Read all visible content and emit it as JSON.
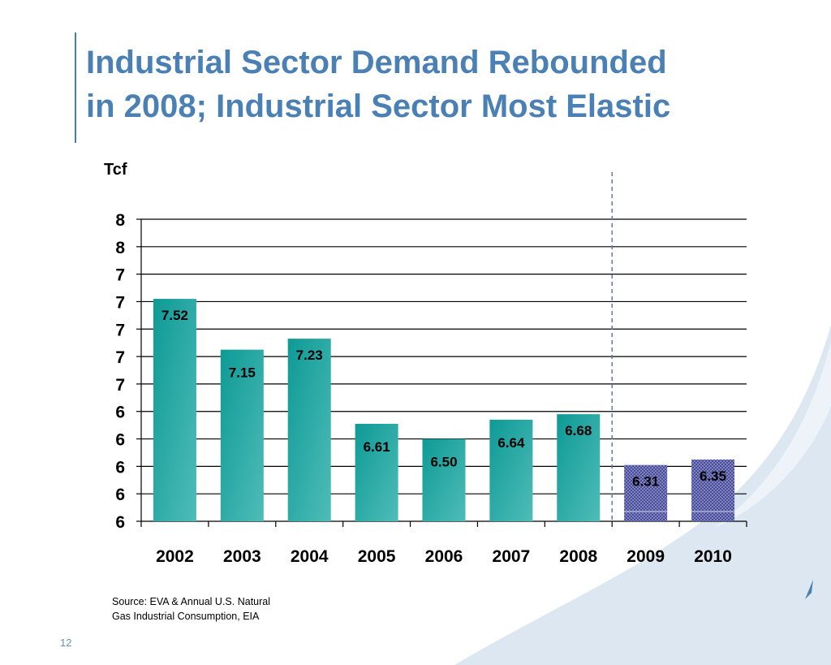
{
  "slide": {
    "title_line1": "Industrial Sector Demand Rebounded",
    "title_line2": "in 2008; Industrial Sector Most Elastic",
    "source_line1": "Source:  EVA & Annual U.S. Natural",
    "source_line2": "Gas Industrial Consumption, EIA",
    "page_number": "12"
  },
  "colors": {
    "title": "#4a80b4",
    "actual_bar": "#1aa09c",
    "forecast_bar": "#3b3f8f",
    "divider": "#6a6fc0"
  },
  "chart_data": {
    "type": "bar",
    "title": "",
    "xlabel": "",
    "ylabel": "Tcf",
    "ylim": [
      5.9,
      8.1
    ],
    "y_tick_labels": [
      "6",
      "6",
      "6",
      "6",
      "6",
      "7",
      "7",
      "7",
      "7",
      "7",
      "8",
      "8"
    ],
    "grid": true,
    "categories": [
      "2002",
      "2003",
      "2004",
      "2005",
      "2006",
      "2007",
      "2008",
      "2009",
      "2010"
    ],
    "series": [
      {
        "values": [
          7.52,
          7.15,
          7.23,
          6.61,
          6.5,
          6.64,
          6.68,
          6.31,
          6.35
        ],
        "data_labels": [
          "7.52",
          "7.15",
          "7.23",
          "6.61",
          "6.50",
          "6.64",
          "6.68",
          "6.31",
          "6.35"
        ],
        "forecast": [
          false,
          false,
          false,
          false,
          false,
          false,
          false,
          true,
          true
        ]
      }
    ]
  }
}
